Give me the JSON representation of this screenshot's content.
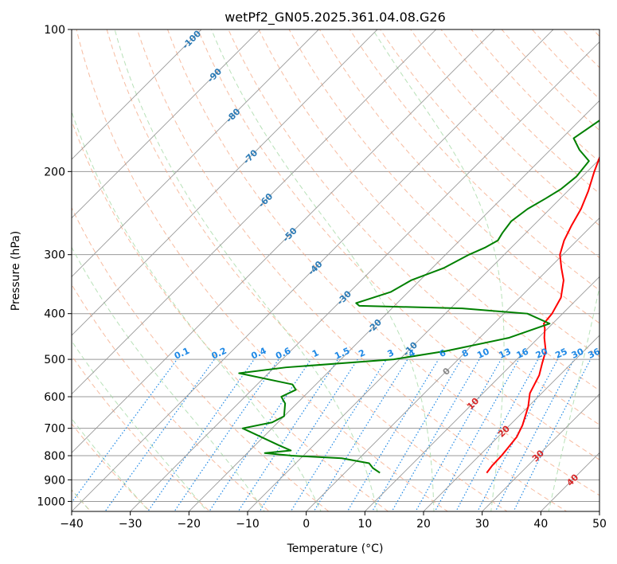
{
  "chart_data": {
    "type": "skew-t",
    "title": "wetPf2_GN05.2025.361.04.08.G26",
    "xlabel": "Temperature (°C)",
    "ylabel": "Pressure (hPa)",
    "xlim": [
      -40,
      50
    ],
    "ylim": [
      1050,
      100
    ],
    "x_ticks": [
      -40,
      -30,
      -20,
      -10,
      0,
      10,
      20,
      30,
      40,
      50
    ],
    "y_ticks": [
      100,
      200,
      300,
      400,
      500,
      600,
      700,
      800,
      900,
      1000
    ],
    "colors": {
      "temperature": "#ff0000",
      "dewpoint": "#008000",
      "isotherm": "#999999",
      "dry_adiabat": "#f4a582",
      "moist_adiabat": "#a6d9a6",
      "mixing_ratio": "#1e88e5",
      "dry_adiabat_label": "#2c7bb6",
      "moist_label": "#d62728"
    },
    "series": [
      {
        "name": "Temperature",
        "color": "#ff0000",
        "points": [
          [
            24.2,
            870
          ],
          [
            23.9,
            840
          ],
          [
            23.8,
            800
          ],
          [
            23.6,
            775
          ],
          [
            23.2,
            730
          ],
          [
            22.2,
            690
          ],
          [
            20,
            630
          ],
          [
            18,
            590
          ],
          [
            16.5,
            540
          ],
          [
            15,
            510
          ],
          [
            13.5,
            480
          ],
          [
            11,
            450
          ],
          [
            9.5,
            430
          ],
          [
            8.5,
            420
          ],
          [
            8.2,
            400
          ],
          [
            7,
            370
          ],
          [
            4.5,
            340
          ],
          [
            2,
            320
          ],
          [
            -0.5,
            300
          ],
          [
            -2.2,
            280
          ],
          [
            -3.5,
            260
          ],
          [
            -4.7,
            240
          ],
          [
            -6.5,
            220
          ],
          [
            -8.8,
            200
          ],
          [
            -10.5,
            185
          ],
          [
            -9.5,
            175
          ],
          [
            -6,
            165
          ],
          [
            -2,
            155
          ],
          [
            0,
            147
          ],
          [
            2,
            140
          ],
          [
            3.5,
            130
          ],
          [
            4.5,
            120
          ],
          [
            5.5,
            110
          ],
          [
            7,
            100
          ]
        ]
      },
      {
        "name": "Dewpoint",
        "color": "#008000",
        "points": [
          [
            6,
            870
          ],
          [
            4,
            850
          ],
          [
            2.5,
            830
          ],
          [
            -3,
            810
          ],
          [
            -12,
            800
          ],
          [
            -17,
            790
          ],
          [
            -13,
            780
          ],
          [
            -16,
            760
          ],
          [
            -25,
            700
          ],
          [
            -21,
            680
          ],
          [
            -20,
            660
          ],
          [
            -22,
            620
          ],
          [
            -23.8,
            600
          ],
          [
            -22.5,
            580
          ],
          [
            -24,
            565
          ],
          [
            -35,
            535
          ],
          [
            -28,
            520
          ],
          [
            -11,
            500
          ],
          [
            -3.5,
            480
          ],
          [
            5,
            450
          ],
          [
            9.5,
            420
          ],
          [
            4,
            400
          ],
          [
            -8,
            390
          ],
          [
            -26,
            385
          ],
          [
            -27,
            380
          ],
          [
            -26,
            375
          ],
          [
            -23,
            360
          ],
          [
            -21.5,
            340
          ],
          [
            -18,
            320
          ],
          [
            -16,
            300
          ],
          [
            -14.5,
            290
          ],
          [
            -13.5,
            280
          ],
          [
            -14,
            270
          ],
          [
            -14.5,
            255
          ],
          [
            -13.8,
            240
          ],
          [
            -12.5,
            228
          ],
          [
            -11.5,
            218
          ],
          [
            -11,
            205
          ],
          [
            -11.5,
            190
          ],
          [
            -15,
            180
          ],
          [
            -18,
            170
          ],
          [
            -16,
            150
          ],
          [
            -13,
            130
          ],
          [
            -9,
            115
          ],
          [
            -5,
            100
          ]
        ]
      }
    ],
    "isotherm_values": [
      -100,
      -90,
      -80,
      -70,
      -60,
      -50,
      -40,
      -30,
      -20,
      -10,
      0,
      10,
      20,
      30,
      40,
      50
    ],
    "isotherm_labels": [
      {
        "value": -100,
        "text": "-100",
        "p": 105
      },
      {
        "value": -90,
        "text": "-90",
        "p": 125
      },
      {
        "value": -80,
        "text": "-80",
        "p": 152
      },
      {
        "value": -70,
        "text": "-70",
        "p": 186
      },
      {
        "value": -60,
        "text": "-60",
        "p": 230
      },
      {
        "value": -50,
        "text": "-50",
        "p": 272
      },
      {
        "value": -40,
        "text": "-40",
        "p": 320
      },
      {
        "value": -30,
        "text": "-30",
        "p": 370
      },
      {
        "value": -20,
        "text": "-20",
        "p": 425
      },
      {
        "value": -10,
        "text": "-10",
        "p": 475
      },
      {
        "value": 0,
        "text": "0",
        "p": 530
      },
      {
        "value": 10,
        "text": "10",
        "p": 620
      },
      {
        "value": 20,
        "text": "20",
        "p": 710
      },
      {
        "value": 30,
        "text": "30",
        "p": 800
      },
      {
        "value": 40,
        "text": "40",
        "p": 900
      }
    ],
    "dry_adiabat_thetas": [
      -60,
      -50,
      -40,
      -30,
      -20,
      -10,
      0,
      10,
      20,
      30,
      40,
      50,
      60,
      70,
      80,
      90,
      100,
      110,
      120,
      130,
      140,
      150,
      160,
      170,
      180,
      190,
      200
    ],
    "moist_adiabat_starts": [
      -40,
      -30,
      -20,
      -10,
      0,
      10,
      20,
      30,
      40,
      50
    ],
    "mixing_ratio_values": [
      0.1,
      0.2,
      0.4,
      0.6,
      1,
      1.5,
      2,
      3,
      4,
      6,
      8,
      10,
      13,
      16,
      20,
      25,
      30,
      36
    ],
    "mixing_ratio_labels": [
      "0.1",
      "0.2",
      "0.4",
      "0.6",
      "1",
      "1.5",
      "2",
      "3",
      "4",
      "6",
      "8",
      "10",
      "13",
      "16",
      "20",
      "25",
      "30",
      "36"
    ],
    "mixing_ratio_label_pressure": 485
  }
}
